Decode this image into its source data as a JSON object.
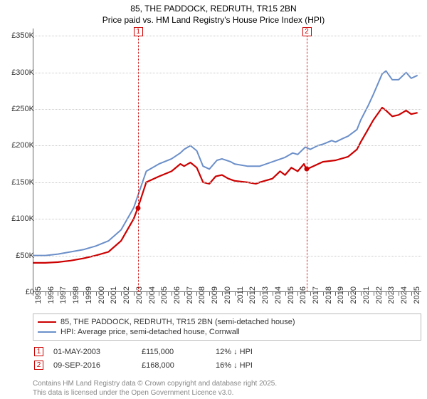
{
  "title": {
    "address": "85, THE PADDOCK, REDRUTH, TR15 2BN",
    "subtitle": "Price paid vs. HM Land Registry's House Price Index (HPI)"
  },
  "chart": {
    "type": "line",
    "background_color": "#ffffff",
    "grid_color": "#c9c9c9",
    "axis_color": "#666666",
    "label_fontsize": 11,
    "title_fontsize": 12,
    "x": {
      "min": 1995,
      "max": 2025.8,
      "ticks": [
        1995,
        1996,
        1997,
        1998,
        1999,
        2000,
        2001,
        2002,
        2003,
        2004,
        2005,
        2006,
        2007,
        2008,
        2009,
        2010,
        2011,
        2012,
        2013,
        2014,
        2015,
        2016,
        2017,
        2018,
        2019,
        2020,
        2021,
        2022,
        2023,
        2024,
        2025
      ]
    },
    "y": {
      "min": 0,
      "max": 360000,
      "ticks": [
        0,
        50000,
        100000,
        150000,
        200000,
        250000,
        300000,
        350000
      ],
      "tick_labels": [
        "£0",
        "£50K",
        "£100K",
        "£150K",
        "£200K",
        "£250K",
        "£300K",
        "£350K"
      ]
    },
    "series": [
      {
        "name": "85, THE PADDOCK, REDRUTH, TR15 2BN (semi-detached house)",
        "color": "#cc0000",
        "width": 2.2,
        "points": [
          [
            1995,
            40000
          ],
          [
            1996,
            40000
          ],
          [
            1997,
            41000
          ],
          [
            1998,
            43000
          ],
          [
            1999,
            46000
          ],
          [
            2000,
            50000
          ],
          [
            2001,
            55000
          ],
          [
            2002,
            70000
          ],
          [
            2003,
            100000
          ],
          [
            2003.33,
            115000
          ],
          [
            2004,
            150000
          ],
          [
            2005,
            158000
          ],
          [
            2006,
            165000
          ],
          [
            2006.7,
            175000
          ],
          [
            2007,
            172000
          ],
          [
            2007.5,
            177000
          ],
          [
            2008,
            170000
          ],
          [
            2008.5,
            150000
          ],
          [
            2009,
            148000
          ],
          [
            2009.5,
            158000
          ],
          [
            2010,
            160000
          ],
          [
            2010.5,
            155000
          ],
          [
            2011,
            152000
          ],
          [
            2012,
            150000
          ],
          [
            2012.7,
            148000
          ],
          [
            2013,
            150000
          ],
          [
            2014,
            155000
          ],
          [
            2014.6,
            165000
          ],
          [
            2015,
            160000
          ],
          [
            2015.5,
            170000
          ],
          [
            2016,
            165000
          ],
          [
            2016.5,
            175000
          ],
          [
            2016.69,
            168000
          ],
          [
            2017,
            170000
          ],
          [
            2018,
            178000
          ],
          [
            2019,
            180000
          ],
          [
            2020,
            185000
          ],
          [
            2020.7,
            195000
          ],
          [
            2021,
            205000
          ],
          [
            2021.5,
            220000
          ],
          [
            2022,
            235000
          ],
          [
            2022.7,
            252000
          ],
          [
            2023,
            248000
          ],
          [
            2023.5,
            240000
          ],
          [
            2024,
            242000
          ],
          [
            2024.6,
            248000
          ],
          [
            2025,
            243000
          ],
          [
            2025.5,
            245000
          ]
        ]
      },
      {
        "name": "HPI: Average price, semi-detached house, Cornwall",
        "color": "#6b8fc9",
        "width": 2.0,
        "points": [
          [
            1995,
            50000
          ],
          [
            1996,
            50000
          ],
          [
            1997,
            52000
          ],
          [
            1998,
            55000
          ],
          [
            1999,
            58000
          ],
          [
            2000,
            63000
          ],
          [
            2001,
            70000
          ],
          [
            2002,
            85000
          ],
          [
            2003,
            115000
          ],
          [
            2004,
            165000
          ],
          [
            2005,
            175000
          ],
          [
            2006,
            182000
          ],
          [
            2006.7,
            190000
          ],
          [
            2007,
            195000
          ],
          [
            2007.5,
            200000
          ],
          [
            2008,
            193000
          ],
          [
            2008.5,
            172000
          ],
          [
            2009,
            168000
          ],
          [
            2009.6,
            180000
          ],
          [
            2010,
            182000
          ],
          [
            2010.7,
            178000
          ],
          [
            2011,
            175000
          ],
          [
            2012,
            172000
          ],
          [
            2013,
            172000
          ],
          [
            2014,
            178000
          ],
          [
            2015,
            184000
          ],
          [
            2015.6,
            190000
          ],
          [
            2016,
            188000
          ],
          [
            2016.6,
            198000
          ],
          [
            2017,
            195000
          ],
          [
            2017.6,
            200000
          ],
          [
            2018,
            202000
          ],
          [
            2018.7,
            207000
          ],
          [
            2019,
            205000
          ],
          [
            2019.6,
            210000
          ],
          [
            2020,
            213000
          ],
          [
            2020.7,
            222000
          ],
          [
            2021,
            235000
          ],
          [
            2021.6,
            255000
          ],
          [
            2022,
            270000
          ],
          [
            2022.7,
            298000
          ],
          [
            2023,
            302000
          ],
          [
            2023.5,
            290000
          ],
          [
            2024,
            290000
          ],
          [
            2024.6,
            300000
          ],
          [
            2025,
            292000
          ],
          [
            2025.5,
            296000
          ]
        ]
      }
    ],
    "markers": [
      {
        "n": "1",
        "x": 2003.33,
        "y": 115000
      },
      {
        "n": "2",
        "x": 2016.69,
        "y": 168000
      }
    ]
  },
  "legend": [
    {
      "color": "#cc0000",
      "label": "85, THE PADDOCK, REDRUTH, TR15 2BN (semi-detached house)"
    },
    {
      "color": "#6b8fc9",
      "label": "HPI: Average price, semi-detached house, Cornwall"
    }
  ],
  "sales": [
    {
      "n": "1",
      "date": "01-MAY-2003",
      "price": "£115,000",
      "delta": "12% ↓ HPI"
    },
    {
      "n": "2",
      "date": "09-SEP-2016",
      "price": "£168,000",
      "delta": "16% ↓ HPI"
    }
  ],
  "footer": {
    "line1": "Contains HM Land Registry data © Crown copyright and database right 2025.",
    "line2": "This data is licensed under the Open Government Licence v3.0."
  }
}
